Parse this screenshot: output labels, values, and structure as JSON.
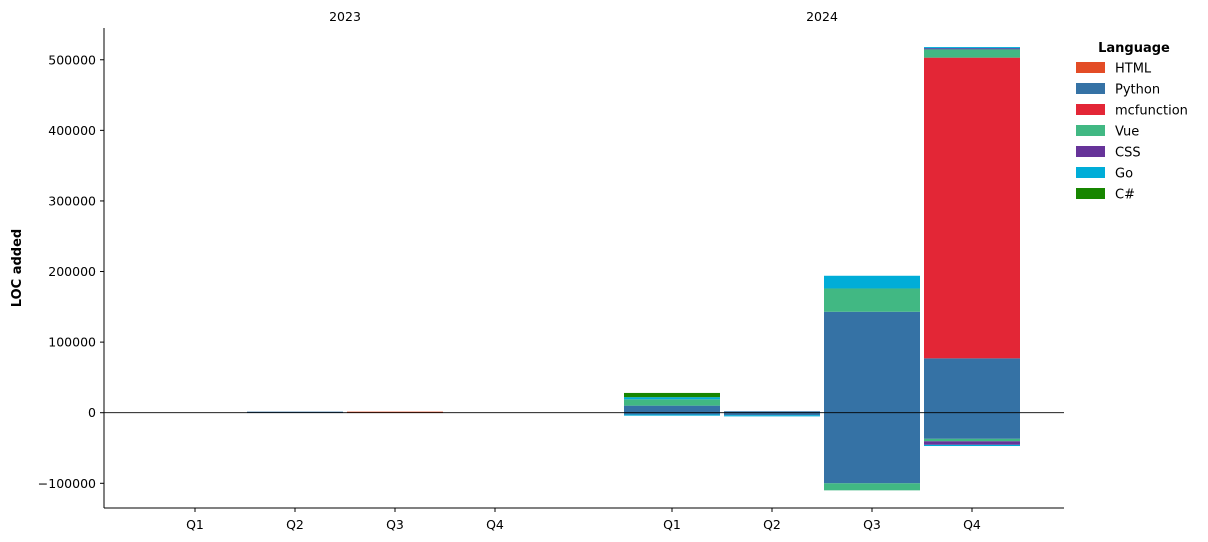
{
  "chart_data": {
    "type": "bar",
    "stacked": true,
    "ylabel": "LOC added",
    "xlabel": "",
    "ylim": [
      -135000,
      545000
    ],
    "yticks": [
      -100000,
      0,
      100000,
      200000,
      300000,
      400000,
      500000
    ],
    "ytick_labels": [
      "−100000",
      "0",
      "100000",
      "200000",
      "300000",
      "400000",
      "500000"
    ],
    "groups": [
      {
        "label": "2023",
        "categories": [
          "Q1",
          "Q2",
          "Q3",
          "Q4"
        ]
      },
      {
        "label": "2024",
        "categories": [
          "Q1",
          "Q2",
          "Q3",
          "Q4"
        ]
      }
    ],
    "legend": {
      "title": "Language",
      "position": "upper-right-outside"
    },
    "series": [
      {
        "name": "HTML",
        "color": "#e34c26",
        "positive": [
          0,
          0,
          1500,
          0,
          0,
          0,
          0,
          0
        ],
        "negative": [
          0,
          0,
          0,
          0,
          0,
          0,
          0,
          0
        ]
      },
      {
        "name": "Python",
        "color": "#3572a5",
        "positive": [
          0,
          1500,
          0,
          0,
          10000,
          2000,
          143000,
          77000
        ],
        "negative": [
          0,
          0,
          0,
          0,
          -2500,
          -3500,
          -100000,
          -37000
        ]
      },
      {
        "name": "mcfunction",
        "color": "#e32636",
        "positive": [
          0,
          0,
          0,
          0,
          0,
          0,
          0,
          426000
        ],
        "negative": [
          0,
          0,
          0,
          0,
          0,
          0,
          0,
          0
        ]
      },
      {
        "name": "Vue",
        "color": "#41b883",
        "positive": [
          0,
          0,
          0,
          0,
          9000,
          0,
          33000,
          12000
        ],
        "negative": [
          0,
          0,
          0,
          0,
          0,
          0,
          -10000,
          -3500
        ]
      },
      {
        "name": "CSS",
        "color": "#663399",
        "positive": [
          0,
          0,
          0,
          0,
          0,
          0,
          0,
          1500
        ],
        "negative": [
          0,
          0,
          0,
          0,
          0,
          0,
          0,
          -5000
        ]
      },
      {
        "name": "Go",
        "color": "#00add8",
        "positive": [
          0,
          0,
          0,
          0,
          3000,
          0,
          18000,
          1500
        ],
        "negative": [
          0,
          0,
          0,
          0,
          -1500,
          -1000,
          0,
          -1000
        ]
      },
      {
        "name": "C#",
        "color": "#178600",
        "positive": [
          0,
          0,
          0,
          0,
          6000,
          0,
          0,
          0
        ],
        "negative": [
          0,
          0,
          0,
          0,
          0,
          0,
          0,
          0
        ]
      }
    ]
  }
}
